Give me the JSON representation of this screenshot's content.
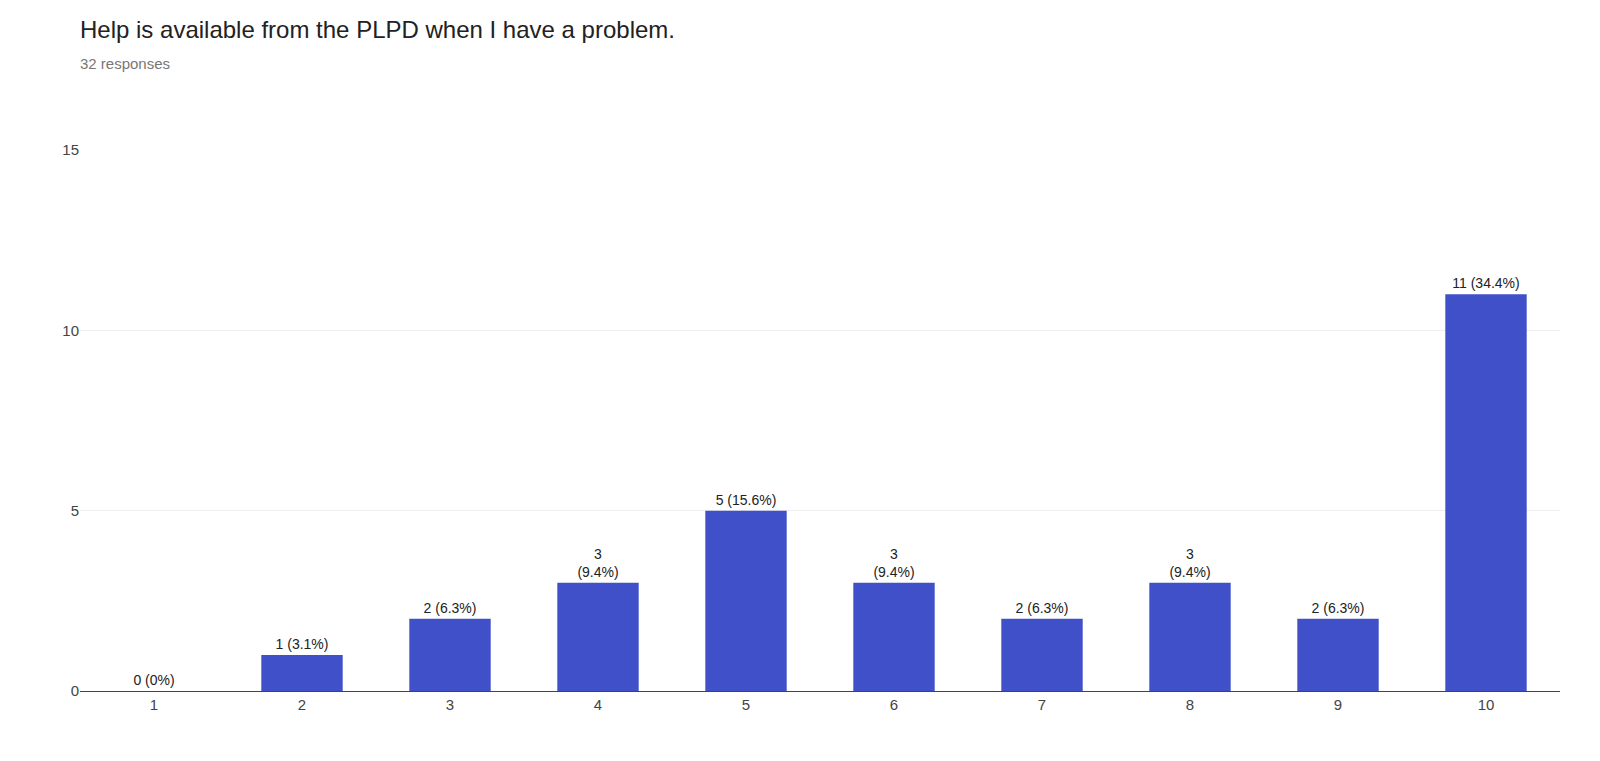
{
  "chart_data": {
    "type": "bar",
    "title": "Help is available from the PLPD when I have a problem.",
    "subtitle": "32 responses",
    "categories": [
      "1",
      "2",
      "3",
      "4",
      "5",
      "6",
      "7",
      "8",
      "9",
      "10"
    ],
    "values": [
      0,
      1,
      2,
      3,
      5,
      3,
      2,
      3,
      2,
      11
    ],
    "value_labels": [
      "0 (0%)",
      "1 (3.1%)",
      "2 (6.3%)",
      "3\n(9.4%)",
      "5 (15.6%)",
      "3\n(9.4%)",
      "2 (6.3%)",
      "3\n(9.4%)",
      "2 (6.3%)",
      "11 (34.4%)"
    ],
    "data_labels": true,
    "color": "#4050c8",
    "ylim": [
      0,
      15
    ],
    "yticks": [
      0,
      5,
      10,
      15
    ],
    "grid": true
  }
}
